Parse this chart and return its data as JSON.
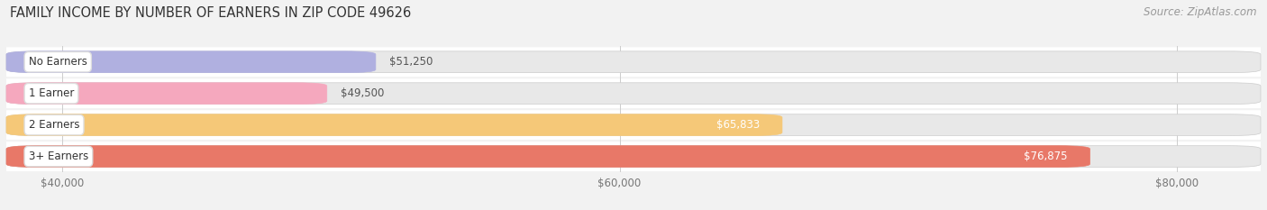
{
  "title": "FAMILY INCOME BY NUMBER OF EARNERS IN ZIP CODE 49626",
  "source": "Source: ZipAtlas.com",
  "categories": [
    "No Earners",
    "1 Earner",
    "2 Earners",
    "3+ Earners"
  ],
  "values": [
    51250,
    49500,
    65833,
    76875
  ],
  "labels": [
    "$51,250",
    "$49,500",
    "$65,833",
    "$76,875"
  ],
  "bar_colors": [
    "#b0b0e0",
    "#f5a8be",
    "#f5c878",
    "#e87868"
  ],
  "label_colors_dark": [
    "#555555",
    "#555555"
  ],
  "label_colors_light": [
    "#ffffff",
    "#ffffff"
  ],
  "label_inside": [
    false,
    false,
    true,
    true
  ],
  "xlim_min": 38000,
  "xlim_max": 83000,
  "xticks": [
    40000,
    60000,
    80000
  ],
  "xtick_labels": [
    "$40,000",
    "$60,000",
    "$80,000"
  ],
  "background_color": "#f2f2f2",
  "row_bg_color": "#ffffff",
  "bar_track_color": "#e8e8e8",
  "title_fontsize": 10.5,
  "source_fontsize": 8.5,
  "label_fontsize": 8.5,
  "category_fontsize": 8.5,
  "tick_fontsize": 8.5
}
